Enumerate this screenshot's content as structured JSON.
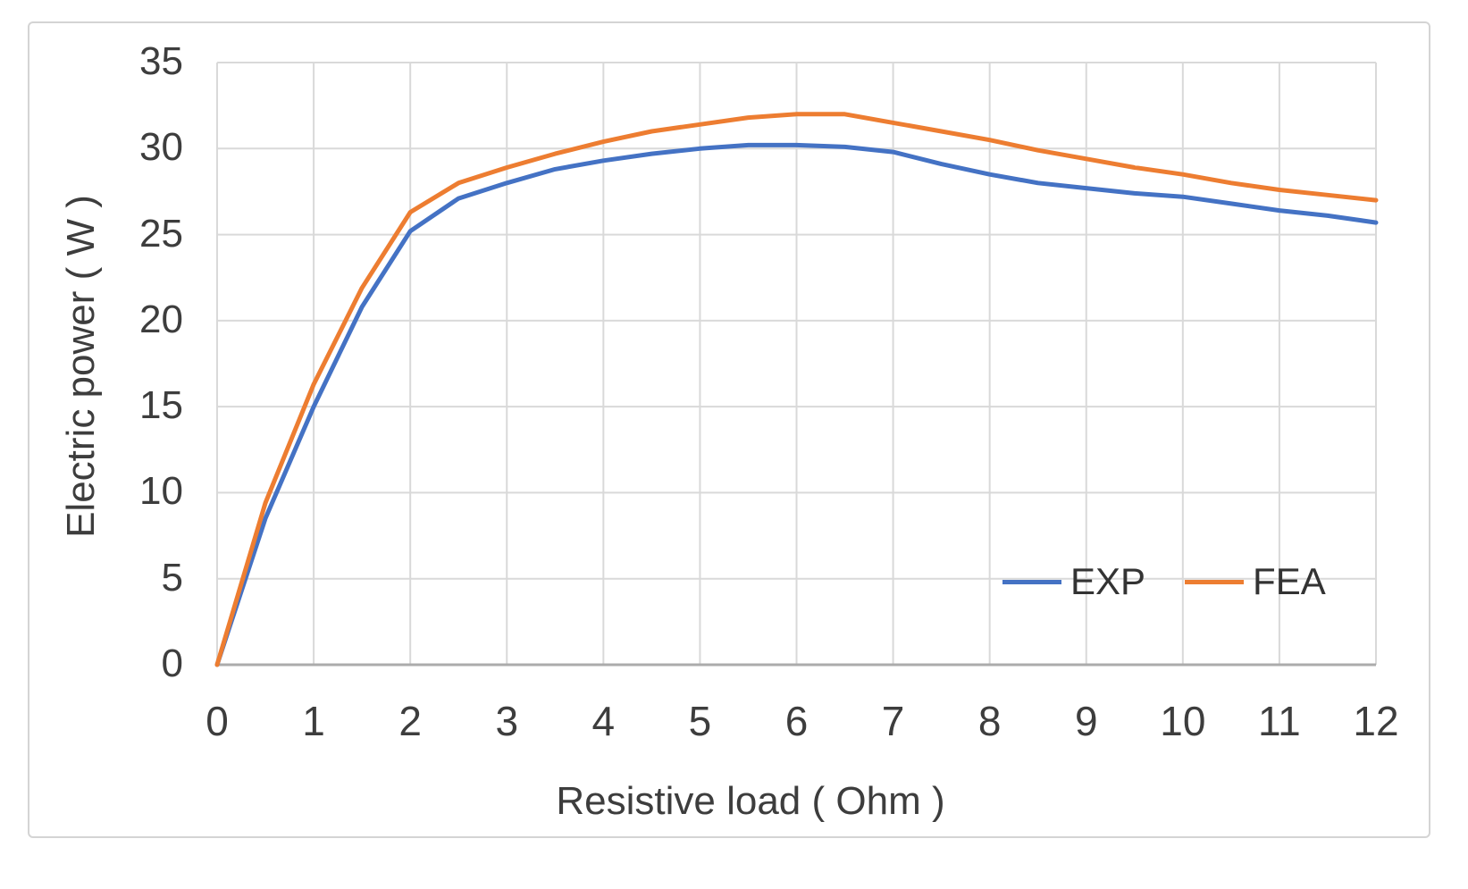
{
  "figure": {
    "border_color": "#d4d4d4",
    "background": "#ffffff"
  },
  "axes": {
    "y_title": "Electric power ( W )",
    "x_title": "Resistive load ( Ohm )"
  },
  "colors": {
    "exp_line": "#4472C4",
    "fea_line": "#ED7D31",
    "gridline": "#D9D9D9",
    "axis_line": "#ABABAB",
    "text": "#3d3d3d"
  },
  "chart_data": {
    "type": "line",
    "title": "",
    "xlabel": "Resistive load ( Ohm )",
    "ylabel": "Electric power ( W )",
    "xlim": [
      0,
      12
    ],
    "ylim": [
      0,
      35
    ],
    "x_ticks": [
      0,
      1,
      2,
      3,
      4,
      5,
      6,
      7,
      8,
      9,
      10,
      11,
      12
    ],
    "y_ticks": [
      0,
      5,
      10,
      15,
      20,
      25,
      30,
      35
    ],
    "grid": true,
    "legend_position": "inside-bottom-right",
    "x": [
      0,
      0.5,
      1,
      1.5,
      2,
      2.5,
      3,
      3.5,
      4,
      4.5,
      5,
      5.5,
      6,
      6.5,
      7,
      7.5,
      8,
      8.5,
      9,
      9.5,
      10,
      10.5,
      11,
      11.5,
      12
    ],
    "series": [
      {
        "name": "EXP",
        "color": "#4472C4",
        "values": [
          0,
          8.5,
          15.0,
          20.8,
          25.2,
          27.1,
          28.0,
          28.8,
          29.3,
          29.7,
          30.0,
          30.2,
          30.2,
          30.1,
          29.8,
          29.1,
          28.5,
          28.0,
          27.7,
          27.4,
          27.2,
          26.8,
          26.4,
          26.1,
          25.7
        ]
      },
      {
        "name": "FEA",
        "color": "#ED7D31",
        "values": [
          0,
          9.4,
          16.3,
          21.9,
          26.3,
          28.0,
          28.9,
          29.7,
          30.4,
          31.0,
          31.4,
          31.8,
          32.0,
          32.0,
          31.5,
          31.0,
          30.5,
          29.9,
          29.4,
          28.9,
          28.5,
          28.0,
          27.6,
          27.3,
          27.0
        ]
      }
    ]
  }
}
